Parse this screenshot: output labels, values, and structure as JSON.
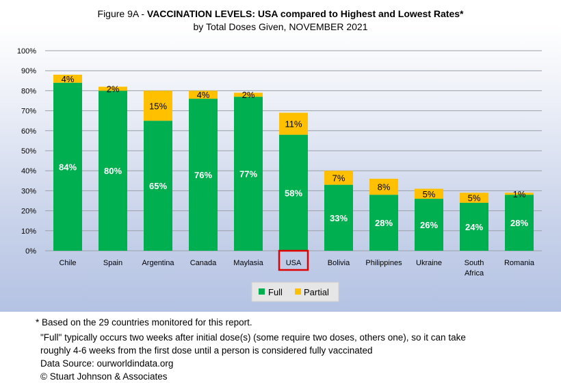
{
  "chart_data": {
    "type": "bar",
    "stacked": true,
    "title_prefix": "Figure 9A - ",
    "title_bold": "VACCINATION LEVELS:  USA compared to Highest and Lowest Rates*",
    "subtitle": "by Total Doses Given, NOVEMBER 2021",
    "categories": [
      "Chile",
      "Spain",
      "Argentina",
      "Canada",
      "Maylasia",
      "USA",
      "Bolivia",
      "Philippines",
      "Ukraine",
      "South Africa",
      "Romania"
    ],
    "highlight_category": "USA",
    "series": [
      {
        "name": "Full",
        "color": "#00b050",
        "values": [
          84,
          80,
          65,
          76,
          77,
          58,
          33,
          28,
          26,
          24,
          28
        ],
        "labels": [
          "84%",
          "80%",
          "65%",
          "76%",
          "77%",
          "58%",
          "33%",
          "28%",
          "26%",
          "24%",
          "28%"
        ]
      },
      {
        "name": "Partial",
        "color": "#ffc000",
        "values": [
          4,
          2,
          15,
          4,
          2,
          11,
          7,
          8,
          5,
          5,
          1
        ],
        "labels": [
          "4%",
          "2%",
          "15%",
          "4%",
          "2%",
          "11%",
          "7%",
          "8%",
          "5%",
          "5%",
          "1%"
        ]
      }
    ],
    "yticks": [
      "0%",
      "10%",
      "20%",
      "30%",
      "40%",
      "50%",
      "60%",
      "70%",
      "80%",
      "90%",
      "100%"
    ],
    "ylim": [
      0,
      100
    ],
    "grid": true,
    "legend_position": "bottom",
    "highlight_color": "#e00000"
  },
  "notes": {
    "line1": "* Based on the 29 countries monitored for this report.",
    "line2": "\"Full\" typically occurs two weeks after initial dose(s) (some require two doses, others one),  so it can take",
    "line3": "roughly 4-6 weeks from the first dose until a person is considered fully vaccinated",
    "line4": "Data Source:  ourworldindata.org",
    "line5": "© Stuart Johnson & Associates"
  }
}
